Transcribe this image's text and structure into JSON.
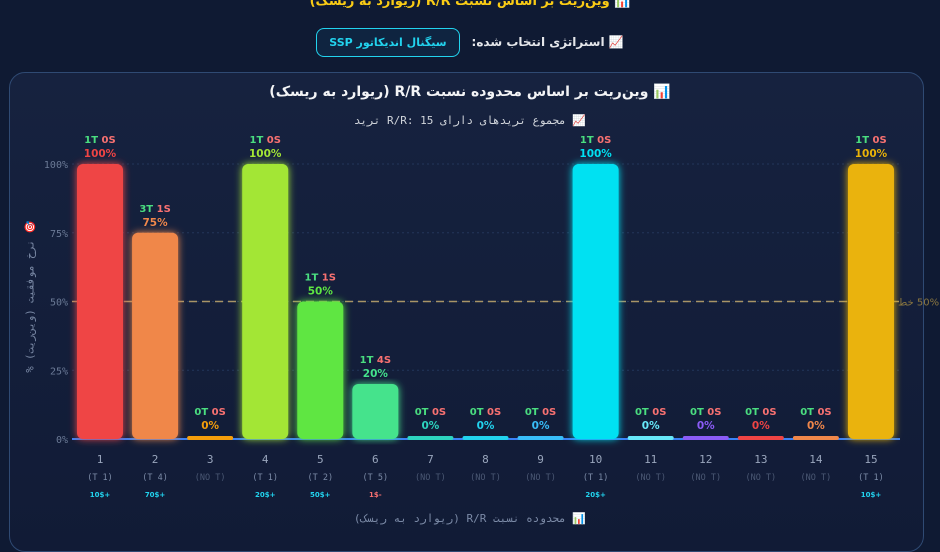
{
  "header": {
    "page_title": "📊 وین‌ریت بر اساس نسبت R/R (ریوارد به ریسک)",
    "strategy_label": "📈 استراتژی انتخاب شده:",
    "strategy_button": "سیگنال اندیکاتور SSP"
  },
  "chart_data": {
    "type": "bar",
    "title": "📊 وین‌ریت بر اساس محدوده نسبت R/R (ریوارد به ریسک)",
    "subtitle": "📈 مجموع تریدهای دارای R/R: 15 ترید",
    "ylabel": "🎯 نرخ موفقیت (وین‌ریت) %",
    "xlabel": "📊 محدوده نسبت R/R (ریوارد به ریسک)",
    "ylim": [
      0,
      100
    ],
    "yticks": [
      "0%",
      "25%",
      "50%",
      "75%",
      "100%"
    ],
    "reference_line": {
      "value": 50,
      "label": "50% خط"
    },
    "categories": [
      "1",
      "2",
      "3",
      "4",
      "5",
      "6",
      "7",
      "8",
      "9",
      "10",
      "11",
      "12",
      "13",
      "14",
      "15"
    ],
    "values": [
      100,
      75,
      0,
      100,
      50,
      20,
      0,
      0,
      0,
      100,
      0,
      0,
      0,
      0,
      100
    ],
    "value_labels": [
      "100%",
      "75%",
      "0%",
      "100%",
      "50%",
      "20%",
      "0%",
      "0%",
      "0%",
      "100%",
      "0%",
      "0%",
      "0%",
      "0%",
      "100%"
    ],
    "wins_labels": [
      "1T",
      "3T",
      "0T",
      "1T",
      "1T",
      "1T",
      "0T",
      "0T",
      "0T",
      "1T",
      "0T",
      "0T",
      "0T",
      "0T",
      "1T"
    ],
    "losses_labels": [
      "0S",
      "1S",
      "0S",
      "0S",
      "1S",
      "4S",
      "0S",
      "0S",
      "0S",
      "0S",
      "0S",
      "0S",
      "0S",
      "0S",
      "0S"
    ],
    "trade_counts": [
      "(T 1)",
      "(T 4)",
      "(NO T)",
      "(T 1)",
      "(T 2)",
      "(T 5)",
      "(NO T)",
      "(NO T)",
      "(NO T)",
      "(T 1)",
      "(NO T)",
      "(NO T)",
      "(NO T)",
      "(NO T)",
      "(T 1)"
    ],
    "profits": [
      "10$+",
      "70$+",
      "",
      "20$+",
      "50$+",
      "1$-",
      "",
      "",
      "",
      "20$+",
      "",
      "",
      "",
      "",
      "10$+"
    ],
    "profit_colors": [
      "#22d3ee",
      "#22d3ee",
      "",
      "#22d3ee",
      "#22d3ee",
      "#f87171",
      "",
      "",
      "",
      "#22d3ee",
      "",
      "",
      "",
      "",
      "#22d3ee"
    ],
    "colors": [
      "#ef4444",
      "#f0874a",
      "#f59e0b",
      "#a3e635",
      "#5ee643",
      "#44e38c",
      "#2dd4bf",
      "#22d3ee",
      "#38bdf8",
      "#00e1f2",
      "#67e8f9",
      "#8b5cf6",
      "#ef4444",
      "#f0874a",
      "#eab308"
    ],
    "grid": true,
    "legend": "none"
  }
}
